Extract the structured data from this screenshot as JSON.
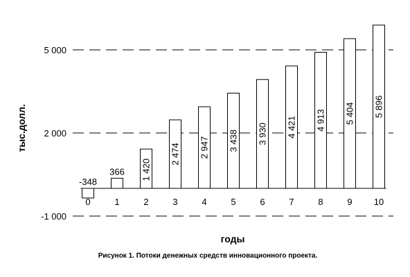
{
  "chart_data": {
    "type": "bar",
    "categories": [
      "0",
      "1",
      "2",
      "3",
      "4",
      "5",
      "6",
      "7",
      "8",
      "9",
      "10"
    ],
    "values": [
      -348,
      366,
      1420,
      2474,
      2947,
      3438,
      3930,
      4421,
      4913,
      5404,
      5896
    ],
    "value_labels": [
      "-348",
      "366",
      "1 420",
      "2 474",
      "2 947",
      "3 438",
      "3 930",
      "4 421",
      "4 913",
      "5 404",
      "5 896"
    ],
    "ylabel": "тыс.долл.",
    "xlabel": "годы",
    "yticks": [
      -1000,
      2000,
      5000
    ],
    "ytick_labels": [
      "-1 000",
      "2 000",
      "5 000"
    ],
    "ylim": [
      -1000,
      5900
    ],
    "grid": "dashed horizontal at ticks"
  },
  "caption": "Рисунок 1. Потоки денежных средств инновационного проекта."
}
